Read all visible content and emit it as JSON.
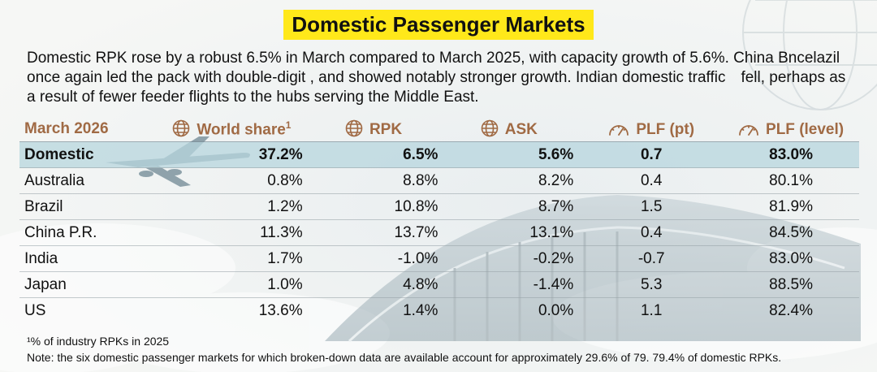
{
  "title": "Domestic Passenger Markets",
  "intro": "Domestic RPK rose by a robust 6.5% in March compared to March 2025, with capacity growth of 5.6%. China Bncelazil once again led the pack with double-digit , and showed notably stronger growth. Indian domestic traffic fell, perhaps as a result of fewer feeder flights to the hubs serving the Middle East.",
  "table": {
    "headers": {
      "market": "March 2026",
      "world_share": "World share",
      "world_share_sup": "1",
      "rpk": "RPK",
      "ask": "ASK",
      "plf_pt": "PLF (pt)",
      "plf_level": "PLF (level)"
    },
    "header_icons": [
      "globe-icon",
      "globe-icon",
      "globe-icon",
      "gauge-icon",
      "gauge-icon"
    ],
    "rows": [
      {
        "market": "Domestic",
        "world_share": "37.2%",
        "rpk": "6.5%",
        "ask": "5.6%",
        "plf_pt": "0.7",
        "plf_level": "83.0%"
      },
      {
        "market": "Australia",
        "world_share": "0.8%",
        "rpk": "8.8%",
        "ask": "8.2%",
        "plf_pt": "0.4",
        "plf_level": "80.1%"
      },
      {
        "market": "Brazil",
        "world_share": "1.2%",
        "rpk": "10.8%",
        "ask": "8.7%",
        "plf_pt": "1.5",
        "plf_level": "81.9%"
      },
      {
        "market": "China P.R.",
        "world_share": "11.3%",
        "rpk": "13.7%",
        "ask": "13.1%",
        "plf_pt": "0.4",
        "plf_level": "84.5%"
      },
      {
        "market": "India",
        "world_share": "1.7%",
        "rpk": "-1.0%",
        "ask": "-0.2%",
        "plf_pt": "-0.7",
        "plf_level": "83.0%"
      },
      {
        "market": "Japan",
        "world_share": "1.0%",
        "rpk": "4.8%",
        "ask": "-1.4%",
        "plf_pt": "5.3",
        "plf_level": "88.5%"
      },
      {
        "market": "US",
        "world_share": "13.6%",
        "rpk": "1.4%",
        "ask": "0.0%",
        "plf_pt": "1.1",
        "plf_level": "82.4%"
      }
    ]
  },
  "footnote1": "¹% of industry RPKs in 2025",
  "footnote2": "Note: the six domestic passenger markets for which broken-down data are available account for approximately 29.6% of 79. 79.4% of domestic RPKs.",
  "colors": {
    "title_bg": "#ffe81a",
    "header_text": "#a06a44",
    "highlight_row": "#b7d6de"
  }
}
